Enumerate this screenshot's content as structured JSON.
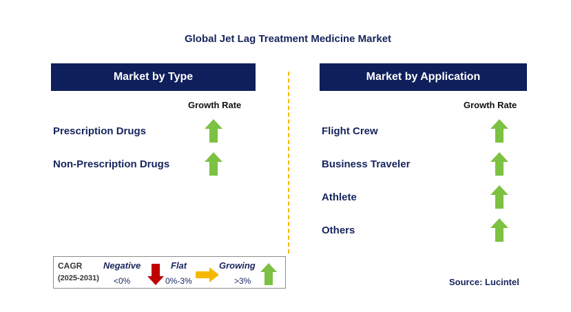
{
  "title": "Global Jet Lag Treatment Medicine Market",
  "left_panel": {
    "header": "Market by Type",
    "growth_rate_label": "Growth Rate",
    "items": [
      {
        "label": "Prescription Drugs",
        "trend": "growing"
      },
      {
        "label": "Non-Prescription Drugs",
        "trend": "growing"
      }
    ]
  },
  "right_panel": {
    "header": "Market by Application",
    "growth_rate_label": "Growth Rate",
    "items": [
      {
        "label": "Flight Crew",
        "trend": "growing"
      },
      {
        "label": "Business Traveler",
        "trend": "growing"
      },
      {
        "label": "Athlete",
        "trend": "growing"
      },
      {
        "label": "Others",
        "trend": "growing"
      }
    ]
  },
  "legend": {
    "cagr_label": "CAGR",
    "period": "(2025-2031)",
    "negative": {
      "label": "Negative",
      "range": "<0%"
    },
    "flat": {
      "label": "Flat",
      "range": "0%-3%"
    },
    "growing": {
      "label": "Growing",
      "range": ">3%"
    }
  },
  "source": "Source: Lucintel",
  "colors": {
    "header_bg": "#0f1f5c",
    "text_navy": "#17245c",
    "growing": "#7dc142",
    "negative": "#c00000",
    "flat": "#f5b800",
    "divider": "#f5b800"
  }
}
